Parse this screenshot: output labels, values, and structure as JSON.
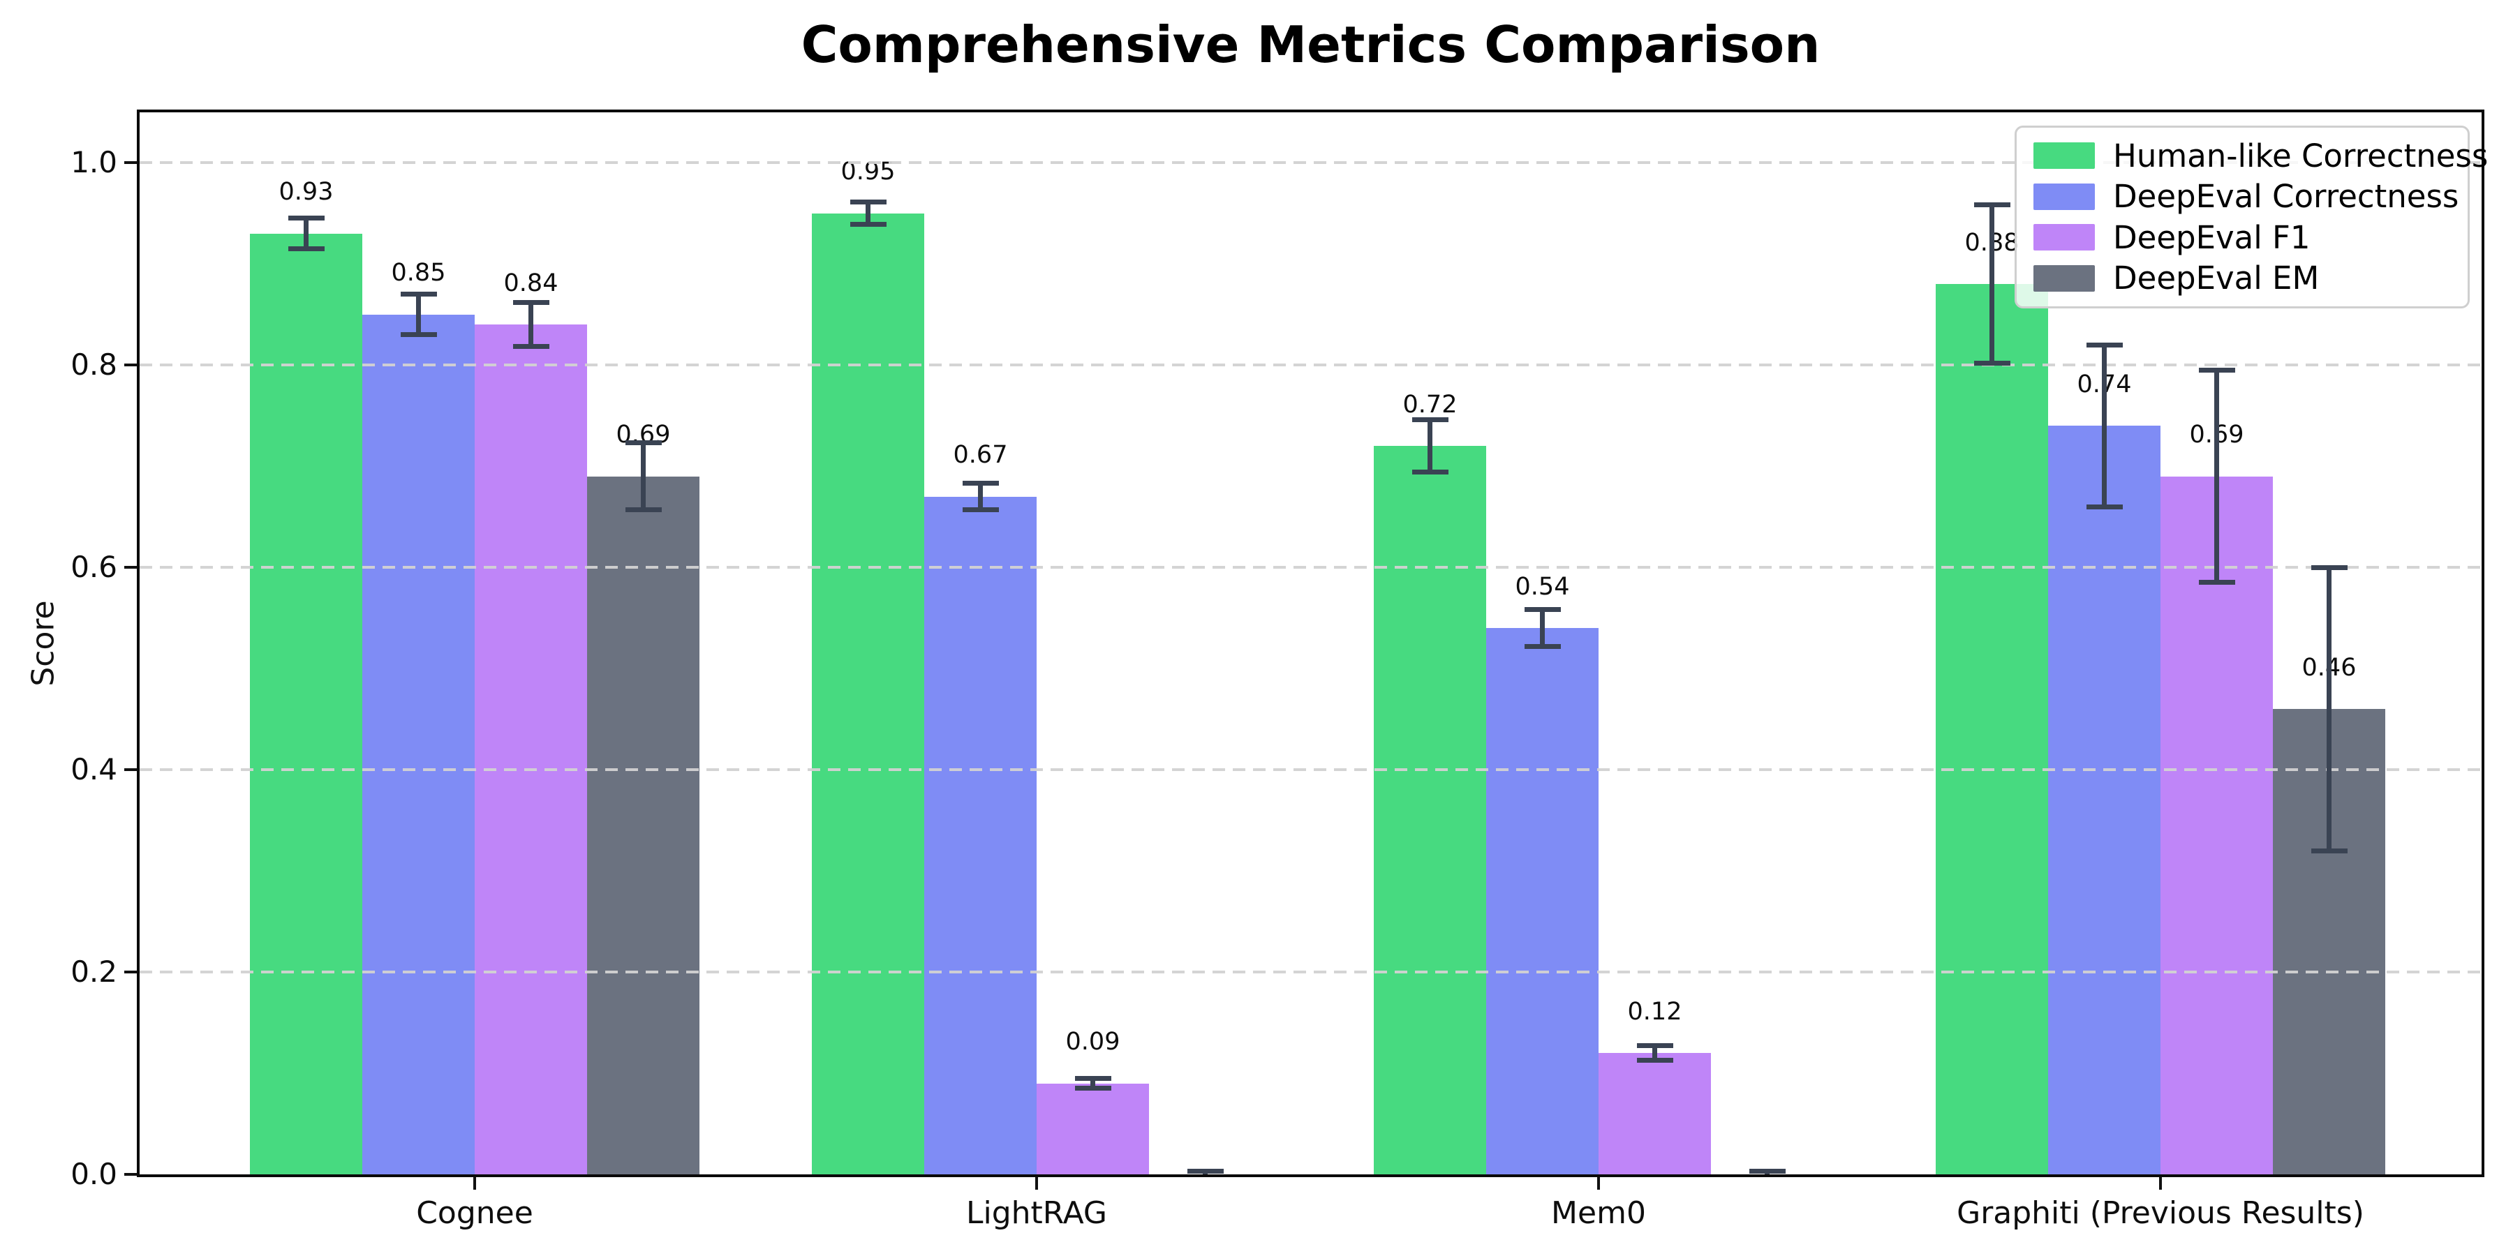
{
  "chart_data": {
    "type": "bar",
    "title": "Comprehensive Metrics Comparison",
    "ylabel": "Score",
    "xlabel": "",
    "categories": [
      "Cognee",
      "LightRAG",
      "Mem0",
      "Graphiti (Previous Results)"
    ],
    "series": [
      {
        "name": "Human-like Correctness",
        "color": "#47da80",
        "values": [
          0.93,
          0.95,
          0.72,
          0.88
        ],
        "errors": [
          0.015,
          0.011,
          0.026,
          0.078
        ],
        "bar_labels": [
          "0.93",
          "0.95",
          "0.72",
          "0.88"
        ]
      },
      {
        "name": "DeepEval Correctness",
        "color": "#7f8cf5",
        "values": [
          0.85,
          0.67,
          0.54,
          0.74
        ],
        "errors": [
          0.02,
          0.013,
          0.018,
          0.08
        ],
        "bar_labels": [
          "0.85",
          "0.67",
          "0.54",
          "0.74"
        ]
      },
      {
        "name": "DeepEval F1",
        "color": "#bf85f8",
        "values": [
          0.84,
          0.09,
          0.12,
          0.69
        ],
        "errors": [
          0.022,
          0.005,
          0.007,
          0.105
        ],
        "bar_labels": [
          "0.84",
          "0.09",
          "0.12",
          "0.69"
        ]
      },
      {
        "name": "DeepEval EM",
        "color": "#6b7280",
        "values": [
          0.69,
          0.0,
          0.0,
          0.46
        ],
        "errors": [
          0.033,
          0.003,
          0.003,
          0.14
        ],
        "bar_labels": [
          "0.69",
          "",
          "",
          "0.46"
        ]
      }
    ],
    "yticks": [
      0.0,
      0.2,
      0.4,
      0.6,
      0.8,
      1.0
    ],
    "ytick_labels": [
      "0.0",
      "0.2",
      "0.4",
      "0.6",
      "0.8",
      "1.0"
    ],
    "ylim": [
      0,
      1.05
    ],
    "grid": "horizontal-dashed",
    "grid_color": "#d2d2d2",
    "legend_position": "upper-right",
    "error_bar_color": "#3a4353"
  }
}
